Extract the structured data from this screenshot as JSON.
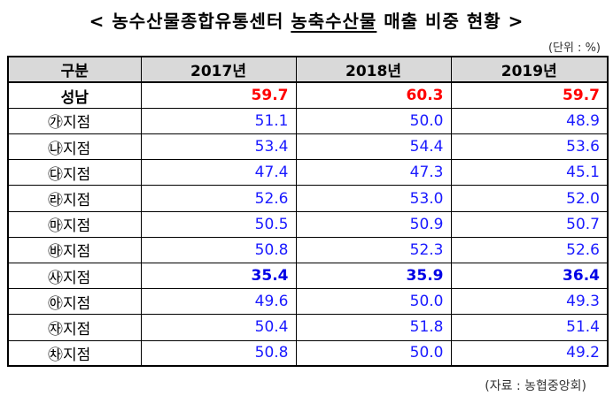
{
  "title_prefix": "< ",
  "title_main": "농수산물종합유통센터",
  "title_highlight": "농축수산물",
  "title_rest": " 매출 비중 현황",
  "title_suffix": " >",
  "unit": "(단위 : %)",
  "source": "(자료 : 농협중앙회)",
  "headers": [
    "구분",
    "2017년",
    "2018년",
    "2019년"
  ],
  "rows": [
    {
      "label": "성남",
      "values": [
        "59.7",
        "60.3",
        "59.7"
      ],
      "style": "total"
    },
    {
      "label": "㉮지점",
      "values": [
        "51.1",
        "50.0",
        "48.9"
      ],
      "style": "normal"
    },
    {
      "label": "㉯지점",
      "values": [
        "53.4",
        "54.4",
        "53.6"
      ],
      "style": "normal"
    },
    {
      "label": "㉰지점",
      "values": [
        "47.4",
        "47.3",
        "45.1"
      ],
      "style": "normal"
    },
    {
      "label": "㉱지점",
      "values": [
        "52.6",
        "53.0",
        "52.0"
      ],
      "style": "normal"
    },
    {
      "label": "㉲지점",
      "values": [
        "50.5",
        "50.9",
        "50.7"
      ],
      "style": "normal"
    },
    {
      "label": "㉳지점",
      "values": [
        "50.8",
        "52.3",
        "52.6"
      ],
      "style": "normal"
    },
    {
      "label": "㉴지점",
      "values": [
        "35.4",
        "35.9",
        "36.4"
      ],
      "style": "strong"
    },
    {
      "label": "㉵지점",
      "values": [
        "49.6",
        "50.0",
        "49.3"
      ],
      "style": "normal"
    },
    {
      "label": "㉶지점",
      "values": [
        "50.4",
        "51.8",
        "51.4"
      ],
      "style": "normal"
    },
    {
      "label": "㉷지점",
      "values": [
        "50.8",
        "50.0",
        "49.2"
      ],
      "style": "normal"
    }
  ],
  "colors": {
    "total": "#ff0000",
    "value": "#1a1aff",
    "header_bg": "#d9d9d9"
  }
}
